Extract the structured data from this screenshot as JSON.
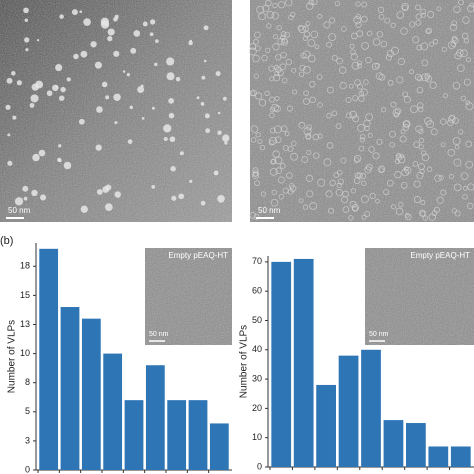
{
  "panel_label": "(b)",
  "micrographs": [
    {
      "scale_bar": "50 nm"
    },
    {
      "scale_bar": "50 nm"
    }
  ],
  "chart_data": [
    {
      "type": "bar",
      "y_label": "Number of VLPs",
      "color": "#2e75b6",
      "categories": [
        null,
        null,
        null,
        null,
        null,
        null,
        null,
        null,
        null
      ],
      "values": [
        19,
        14,
        13,
        10,
        6,
        9,
        6,
        6,
        4
      ],
      "ylim": [
        0,
        19.5
      ],
      "yticks": [
        0,
        {
          "value": 2.5,
          "label": "3"
        },
        5,
        {
          "value": 7.5,
          "label": "8"
        },
        10,
        {
          "value": 12.5,
          "label": "13"
        },
        15,
        {
          "value": 17.5,
          "label": "18"
        }
      ],
      "inset": {
        "label": "Empty pEAQ-HT",
        "scale_bar": "50 nm"
      }
    },
    {
      "type": "bar",
      "y_label": "Number of VLPs",
      "color": "#2e75b6",
      "categories": [
        null,
        null,
        null,
        null,
        null,
        null,
        null,
        null,
        null
      ],
      "values": [
        70,
        71,
        28,
        38,
        40,
        16,
        15,
        7,
        7
      ],
      "ylim": [
        0,
        72
      ],
      "yticks": [
        0,
        10,
        20,
        30,
        40,
        50,
        60,
        70
      ],
      "inset": {
        "label": "Empty pEAQ-HT",
        "scale_bar": "50 nm"
      }
    }
  ]
}
